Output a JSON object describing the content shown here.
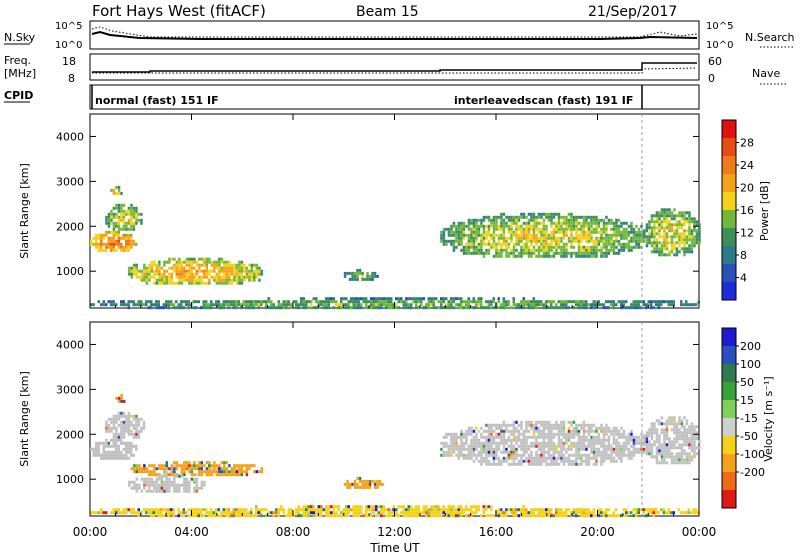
{
  "header": {
    "station": "Fort Hays West (fitACF)",
    "beam": "Beam 15",
    "date": "21/Sep/2017"
  },
  "status_panels": {
    "nsky_label": "N.Sky",
    "nsearch_label": "N.Search",
    "freq_label_top": "Freq.",
    "freq_label_unit": "[MHz]",
    "nave_label": "Nave",
    "cpid_label": "CPID",
    "nsky_ticks": [
      "10^5",
      "10^0"
    ],
    "nsearch_ticks": [
      "10^5",
      "10^0"
    ],
    "freq_ticks": [
      "18",
      "8"
    ],
    "nave_ticks": [
      "60",
      "0"
    ],
    "cpid_mode_1": "normal (fast) 151 IF",
    "cpid_mode_2": "interleavedscan (fast) 191 IF"
  },
  "colors": {
    "power_scale": [
      "#1f2bd6",
      "#2850b8",
      "#2f7a8a",
      "#3d8f5a",
      "#6fb83a",
      "#f2d21a",
      "#f3a21a",
      "#f07a18",
      "#e84c14",
      "#e01010"
    ],
    "velocity_scale": [
      "#1b1bd2",
      "#2a50c0",
      "#2d7a4e",
      "#3aa03a",
      "#7fd05a",
      "#cfcfcf",
      "#f5d21a",
      "#f5a01a",
      "#f06a18",
      "#e01818"
    ],
    "ground_scatter": "#c0c0c0"
  },
  "chart_data": [
    {
      "type": "heatmap",
      "title": "Power",
      "xlabel": "",
      "ylabel": "Slant Range [km]",
      "x_ticks": [
        "00:00",
        "04:00",
        "08:00",
        "12:00",
        "16:00",
        "20:00",
        "00:00"
      ],
      "xlim_hours": [
        0,
        24
      ],
      "y_ticks": [
        1000,
        2000,
        3000,
        4000
      ],
      "ylim": [
        180,
        4500
      ],
      "colorbar_label": "Power [dB]",
      "colorbar_ticks": [
        4,
        8,
        12,
        16,
        20,
        24,
        28
      ],
      "colorbar_range": [
        0,
        32
      ],
      "regions": [
        {
          "t0": 0.0,
          "t1": 1.8,
          "r0": 1450,
          "r1": 1900,
          "power": 21
        },
        {
          "t0": 0.6,
          "t1": 2.0,
          "r0": 1900,
          "r1": 2500,
          "power": 14
        },
        {
          "t0": 0.8,
          "t1": 1.2,
          "r0": 2700,
          "r1": 2900,
          "power": 16
        },
        {
          "t0": 1.5,
          "t1": 6.8,
          "r0": 700,
          "r1": 1300,
          "power": 18
        },
        {
          "t0": 10.0,
          "t1": 11.3,
          "r0": 800,
          "r1": 1050,
          "power": 10
        },
        {
          "t0": 13.8,
          "t1": 21.8,
          "r0": 1300,
          "r1": 2300,
          "power": 15
        },
        {
          "t0": 21.8,
          "t1": 24.0,
          "r0": 1350,
          "r1": 2400,
          "power": 13
        },
        {
          "t0": 0.0,
          "t1": 24.0,
          "r0": 180,
          "r1": 420,
          "power": 12
        }
      ]
    },
    {
      "type": "heatmap",
      "title": "Velocity",
      "xlabel": "Time UT",
      "ylabel": "Slant Range [km]",
      "x_ticks": [
        "00:00",
        "04:00",
        "08:00",
        "12:00",
        "16:00",
        "20:00",
        "00:00"
      ],
      "xlim_hours": [
        0,
        24
      ],
      "y_ticks": [
        1000,
        2000,
        3000,
        4000
      ],
      "ylim": [
        180,
        4500
      ],
      "colorbar_label": "Velocity [m s⁻¹]",
      "colorbar_ticks": [
        200,
        100,
        50,
        15,
        -15,
        -50,
        -100,
        -200
      ],
      "regions": [
        {
          "t0": 0.0,
          "t1": 1.8,
          "r0": 1450,
          "r1": 1900,
          "velocity": 0,
          "ground_scatter": true
        },
        {
          "t0": 0.6,
          "t1": 2.1,
          "r0": 1900,
          "r1": 2500,
          "velocity": 0,
          "ground_scatter": true
        },
        {
          "t0": 1.0,
          "t1": 1.3,
          "r0": 2700,
          "r1": 2900,
          "velocity": -100
        },
        {
          "t0": 1.5,
          "t1": 6.8,
          "r0": 1100,
          "r1": 1400,
          "velocity": -60
        },
        {
          "t0": 1.5,
          "t1": 4.5,
          "r0": 700,
          "r1": 1100,
          "velocity": 0,
          "ground_scatter": true
        },
        {
          "t0": 10.0,
          "t1": 11.5,
          "r0": 800,
          "r1": 1050,
          "velocity": -60
        },
        {
          "t0": 13.8,
          "t1": 21.8,
          "r0": 1300,
          "r1": 2300,
          "velocity": 0,
          "ground_scatter": true
        },
        {
          "t0": 21.8,
          "t1": 24.0,
          "r0": 1350,
          "r1": 2400,
          "velocity": 0,
          "ground_scatter": true
        },
        {
          "t0": 0.0,
          "t1": 24.0,
          "r0": 180,
          "r1": 420,
          "velocity": -40
        }
      ]
    }
  ]
}
